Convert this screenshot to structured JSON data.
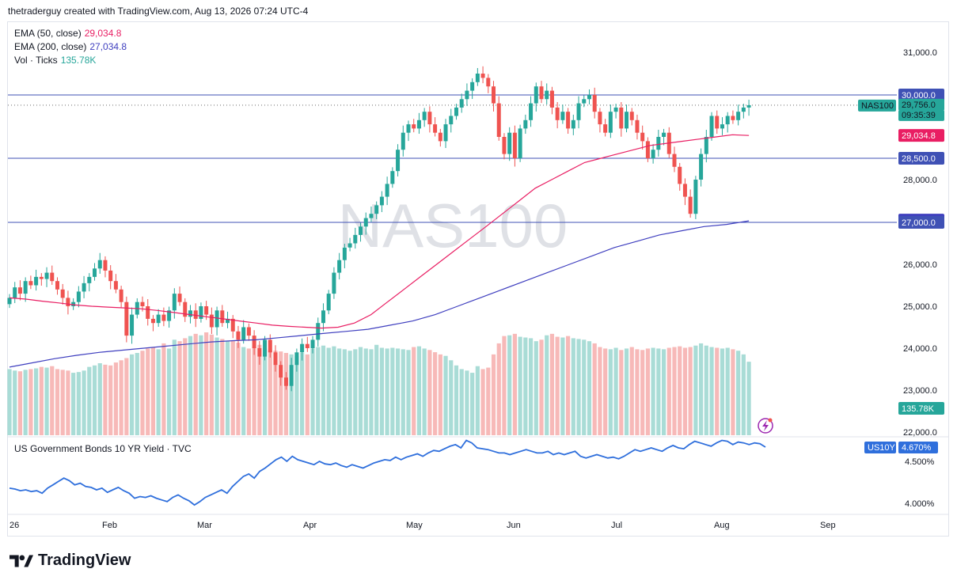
{
  "header": {
    "text": "thetraderguy created with TradingView.com, Aug 13, 2026 07:24 UTC-4"
  },
  "legend": {
    "ema50_label": "EMA (50, close)",
    "ema50_value": "29,034.8",
    "ema200_label": "EMA (200, close)",
    "ema200_value": "27,034.8",
    "vol_label": "Vol · Ticks",
    "vol_value": "135.78K",
    "yield_label": "US Government Bonds 10 YR Yield · TVC"
  },
  "watermark": "NAS100",
  "footer": {
    "brand": "TradingView"
  },
  "colors": {
    "up": "#26a69a",
    "down": "#ef5350",
    "ema50": "#e91e63",
    "ema200": "#3f3fbf",
    "yield": "#2f6fdc",
    "hline": "#3f51b5"
  },
  "chart_data": [
    {
      "type": "candlestick",
      "symbol": "NAS100",
      "x_labels": [
        "26",
        "Feb",
        "Mar",
        "Apr",
        "May",
        "Jun",
        "Jul",
        "Aug",
        "Sep"
      ],
      "y_ticks": [
        "31,000.0",
        "28,000.0",
        "26,000.0",
        "25,000.0",
        "24,000.0",
        "23,000.0",
        "22,000.0"
      ],
      "ylim": [
        22000,
        31800
      ],
      "horizontal_lines": [
        30000,
        28500,
        27000
      ],
      "price_tags": [
        {
          "label": "30,000.0",
          "kind": "line",
          "value": 30000
        },
        {
          "label": "NAS100",
          "kind": "symbol",
          "value": 29756
        },
        {
          "label": "29,756.0",
          "kind": "last",
          "value": 29756
        },
        {
          "label": "09:35:39",
          "kind": "countdown",
          "value": 29756
        },
        {
          "label": "29,034.8",
          "kind": "ema50",
          "value": 29034.8
        },
        {
          "label": "28,500.0",
          "kind": "line",
          "value": 28500
        },
        {
          "label": "27,034.8",
          "kind": "ema200",
          "value": 27034.8
        },
        {
          "label": "27,000.0",
          "kind": "line",
          "value": 27000
        },
        {
          "label": "135.78K",
          "kind": "volume",
          "value": 22600
        }
      ],
      "closes": [
        25200,
        25450,
        25300,
        25600,
        25500,
        25700,
        25650,
        25800,
        25600,
        25400,
        25200,
        25000,
        25100,
        25350,
        25550,
        25700,
        25900,
        26100,
        25850,
        25600,
        25400,
        25100,
        24300,
        24800,
        25100,
        25000,
        24700,
        24600,
        24800,
        24650,
        24900,
        25300,
        25100,
        24750,
        24900,
        24700,
        25000,
        24800,
        24500,
        24900,
        24600,
        24700,
        24400,
        24200,
        24500,
        24300,
        24000,
        23800,
        24200,
        23900,
        23600,
        23300,
        23100,
        23600,
        23900,
        24100,
        24000,
        24200,
        24600,
        24900,
        25300,
        25800,
        26100,
        26400,
        26500,
        26700,
        26900,
        27100,
        27200,
        27400,
        27600,
        27900,
        28200,
        28700,
        29100,
        29300,
        29200,
        29400,
        29600,
        29300,
        29100,
        28900,
        29300,
        29500,
        29700,
        29900,
        30100,
        30300,
        30500,
        30400,
        30200,
        29800,
        29000,
        28600,
        29100,
        28500,
        29200,
        29400,
        29800,
        30200,
        29900,
        30100,
        29700,
        29400,
        29600,
        29200,
        29400,
        29800,
        29900,
        30000,
        29600,
        29300,
        29100,
        29600,
        29700,
        29200,
        29600,
        29400,
        29100,
        28900,
        28500,
        28700,
        29000,
        29100,
        28600,
        28300,
        27900,
        27600,
        27200,
        28000,
        28600,
        29000,
        29500,
        29200,
        29300,
        29500,
        29400,
        29600,
        29700,
        29756
      ],
      "volumes": [
        90,
        88,
        87,
        89,
        90,
        91,
        93,
        92,
        94,
        90,
        89,
        88,
        85,
        86,
        88,
        93,
        95,
        98,
        96,
        95,
        99,
        102,
        105,
        110,
        112,
        115,
        118,
        120,
        117,
        125,
        118,
        130,
        128,
        132,
        135,
        138,
        136,
        140,
        137,
        133,
        131,
        128,
        129,
        126,
        120,
        118,
        120,
        123,
        118,
        116,
        115,
        114,
        112,
        110,
        108,
        112,
        110,
        118,
        120,
        122,
        119,
        121,
        118,
        117,
        115,
        117,
        120,
        118,
        117,
        123,
        119,
        118,
        119,
        118,
        117,
        116,
        120,
        121,
        118,
        116,
        113,
        110,
        108,
        102,
        95,
        90,
        88,
        85,
        94,
        90,
        92,
        110,
        125,
        135,
        136,
        138,
        134,
        133,
        132,
        128,
        130,
        136,
        138,
        134,
        133,
        135,
        132,
        131,
        130,
        128,
        125,
        120,
        118,
        117,
        119,
        116,
        118,
        120,
        117,
        116,
        118,
        119,
        118,
        117,
        119,
        120,
        121,
        119,
        120,
        122,
        125,
        122,
        120,
        119,
        118,
        119,
        117,
        115,
        110,
        100
      ],
      "ema50": [
        25200,
        25170,
        25120,
        25080,
        25030,
        25000,
        24980,
        24960,
        24940,
        24900,
        24850,
        24800,
        24750,
        24700,
        24650,
        24600,
        24550,
        24520,
        24500,
        24480,
        24500,
        24600,
        24800,
        25100,
        25400,
        25700,
        26000,
        26300,
        26600,
        26900,
        27200,
        27500,
        27800,
        28000,
        28200,
        28400,
        28500,
        28600,
        28700,
        28800,
        28850,
        28900,
        28950,
        29000,
        29050,
        29034.8
      ],
      "ema200": [
        23550,
        23650,
        23750,
        23830,
        23900,
        23950,
        24000,
        24050,
        24100,
        24150,
        24180,
        24200,
        24250,
        24300,
        24350,
        24400,
        24450,
        24550,
        24650,
        24800,
        25000,
        25200,
        25400,
        25600,
        25800,
        26000,
        26200,
        26400,
        26550,
        26700,
        26800,
        26900,
        26950,
        27034.8
      ]
    },
    {
      "type": "line",
      "series_name": "US10Y",
      "y_ticks": [
        "4.500%",
        "4.000%"
      ],
      "last_value_label": "4.670%",
      "values": [
        4.18,
        4.17,
        4.15,
        4.16,
        4.14,
        4.15,
        4.12,
        4.18,
        4.22,
        4.26,
        4.3,
        4.27,
        4.22,
        4.24,
        4.2,
        4.19,
        4.16,
        4.18,
        4.13,
        4.16,
        4.19,
        4.15,
        4.12,
        4.06,
        4.08,
        4.07,
        4.09,
        4.06,
        4.04,
        4.02,
        4.07,
        4.1,
        4.06,
        4.03,
        3.98,
        4.02,
        4.07,
        4.1,
        4.13,
        4.16,
        4.12,
        4.2,
        4.26,
        4.32,
        4.35,
        4.3,
        4.38,
        4.42,
        4.47,
        4.52,
        4.55,
        4.5,
        4.56,
        4.52,
        4.5,
        4.48,
        4.46,
        4.5,
        4.47,
        4.46,
        4.48,
        4.45,
        4.43,
        4.46,
        4.44,
        4.42,
        4.45,
        4.48,
        4.5,
        4.52,
        4.51,
        4.55,
        4.52,
        4.55,
        4.57,
        4.59,
        4.56,
        4.6,
        4.63,
        4.62,
        4.65,
        4.68,
        4.7,
        4.66,
        4.75,
        4.72,
        4.66,
        4.65,
        4.64,
        4.62,
        4.6,
        4.6,
        4.58,
        4.6,
        4.62,
        4.64,
        4.62,
        4.6,
        4.6,
        4.62,
        4.58,
        4.6,
        4.58,
        4.6,
        4.62,
        4.56,
        4.54,
        4.56,
        4.58,
        4.56,
        4.54,
        4.55,
        4.53,
        4.56,
        4.6,
        4.64,
        4.62,
        4.64,
        4.66,
        4.64,
        4.62,
        4.66,
        4.69,
        4.66,
        4.65,
        4.7,
        4.74,
        4.72,
        4.7,
        4.68,
        4.72,
        4.75,
        4.74,
        4.7,
        4.73,
        4.72,
        4.7,
        4.72,
        4.71,
        4.67
      ]
    }
  ]
}
